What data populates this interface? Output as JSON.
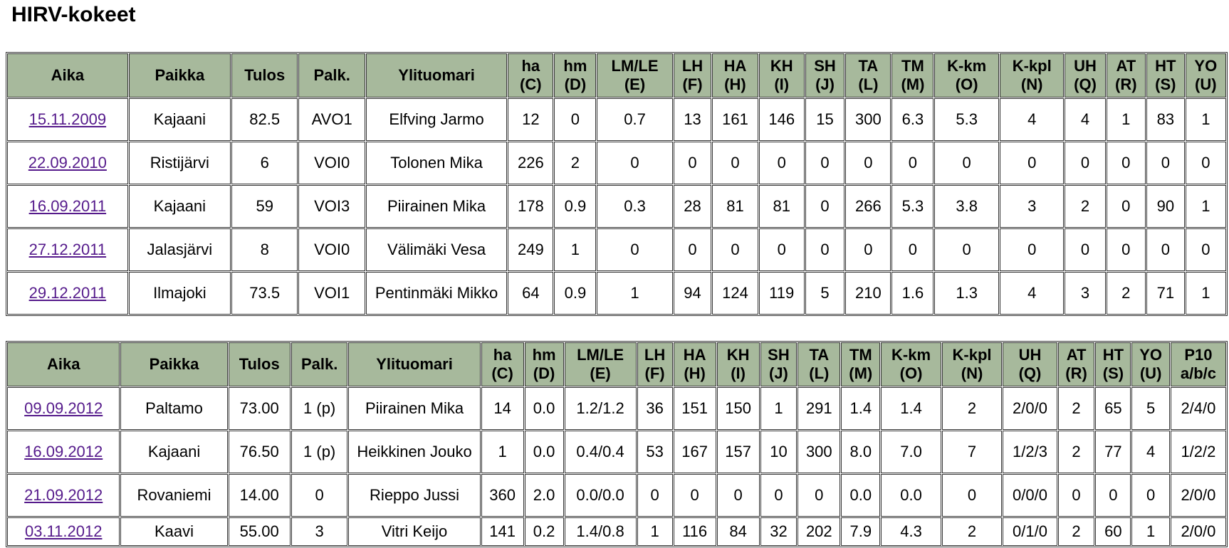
{
  "title": "HIRV-kokeet",
  "tables": [
    {
      "headers": [
        [
          "Aika"
        ],
        [
          "Paikka"
        ],
        [
          "Tulos"
        ],
        [
          "Palk."
        ],
        [
          "Ylituomari"
        ],
        [
          "ha",
          "(C)"
        ],
        [
          "hm",
          "(D)"
        ],
        [
          "LM/LE",
          "(E)"
        ],
        [
          "LH",
          "(F)"
        ],
        [
          "HA",
          "(H)"
        ],
        [
          "KH",
          "(I)"
        ],
        [
          "SH",
          "(J)"
        ],
        [
          "TA",
          "(L)"
        ],
        [
          "TM",
          "(M)"
        ],
        [
          "K-km",
          "(O)"
        ],
        [
          "K-kpl",
          "(N)"
        ],
        [
          "UH",
          "(Q)"
        ],
        [
          "AT",
          "(R)"
        ],
        [
          "HT",
          "(S)"
        ],
        [
          "YO",
          "(U)"
        ]
      ],
      "rows": [
        [
          "15.11.2009",
          "Kajaani",
          "82.5",
          "AVO1",
          "Elfving Jarmo",
          "12",
          "0",
          "0.7",
          "13",
          "161",
          "146",
          "15",
          "300",
          "6.3",
          "5.3",
          "4",
          "4",
          "1",
          "83",
          "1"
        ],
        [
          "22.09.2010",
          "Ristijärvi",
          "6",
          "VOI0",
          "Tolonen Mika",
          "226",
          "2",
          "0",
          "0",
          "0",
          "0",
          "0",
          "0",
          "0",
          "0",
          "0",
          "0",
          "0",
          "0",
          "0"
        ],
        [
          "16.09.2011",
          "Kajaani",
          "59",
          "VOI3",
          "Piirainen Mika",
          "178",
          "0.9",
          "0.3",
          "28",
          "81",
          "81",
          "0",
          "266",
          "5.3",
          "3.8",
          "3",
          "2",
          "0",
          "90",
          "1"
        ],
        [
          "27.12.2011",
          "Jalasjärvi",
          "8",
          "VOI0",
          "Välimäki Vesa",
          "249",
          "1",
          "0",
          "0",
          "0",
          "0",
          "0",
          "0",
          "0",
          "0",
          "0",
          "0",
          "0",
          "0",
          "0"
        ],
        [
          "29.12.2011",
          "Ilmajoki",
          "73.5",
          "VOI1",
          "Pentinmäki Mikko",
          "64",
          "0.9",
          "1",
          "94",
          "124",
          "119",
          "5",
          "210",
          "1.6",
          "1.3",
          "4",
          "3",
          "2",
          "71",
          "1"
        ]
      ]
    },
    {
      "headers": [
        [
          "Aika"
        ],
        [
          "Paikka"
        ],
        [
          "Tulos"
        ],
        [
          "Palk."
        ],
        [
          "Ylituomari"
        ],
        [
          "ha",
          "(C)"
        ],
        [
          "hm",
          "(D)"
        ],
        [
          "LM/LE",
          "(E)"
        ],
        [
          "LH",
          "(F)"
        ],
        [
          "HA",
          "(H)"
        ],
        [
          "KH",
          "(I)"
        ],
        [
          "SH",
          "(J)"
        ],
        [
          "TA",
          "(L)"
        ],
        [
          "TM",
          "(M)"
        ],
        [
          "K-km",
          "(O)"
        ],
        [
          "K-kpl",
          "(N)"
        ],
        [
          "UH",
          "(Q)"
        ],
        [
          "AT",
          "(R)"
        ],
        [
          "HT",
          "(S)"
        ],
        [
          "YO",
          "(U)"
        ],
        [
          "P10",
          "a/b/c"
        ]
      ],
      "rows": [
        [
          "09.09.2012",
          "Paltamo",
          "73.00",
          "1 (p)",
          "Piirainen Mika",
          "14",
          "0.0",
          "1.2/1.2",
          "36",
          "151",
          "150",
          "1",
          "291",
          "1.4",
          "1.4",
          "2",
          "2/0/0",
          "2",
          "65",
          "5",
          "2/4/0"
        ],
        [
          "16.09.2012",
          "Kajaani",
          "76.50",
          "1 (p)",
          "Heikkinen Jouko",
          "1",
          "0.0",
          "0.4/0.4",
          "53",
          "167",
          "157",
          "10",
          "300",
          "8.0",
          "7.0",
          "7",
          "1/2/3",
          "2",
          "77",
          "4",
          "1/2/2"
        ],
        [
          "21.09.2012",
          "Rovaniemi",
          "14.00",
          "0",
          "Rieppo Jussi",
          "360",
          "2.0",
          "0.0/0.0",
          "0",
          "0",
          "0",
          "0",
          "0",
          "0.0",
          "0.0",
          "0",
          "0/0/0",
          "0",
          "0",
          "0",
          "2/0/0"
        ],
        [
          "03.11.2012",
          "Kaavi",
          "55.00",
          "3",
          "Vitri Keijo",
          "141",
          "0.2",
          "1.4/0.8",
          "1",
          "116",
          "84",
          "32",
          "202",
          "7.9",
          "4.3",
          "2",
          "0/1/0",
          "2",
          "60",
          "1",
          "2/0/0"
        ]
      ]
    }
  ]
}
